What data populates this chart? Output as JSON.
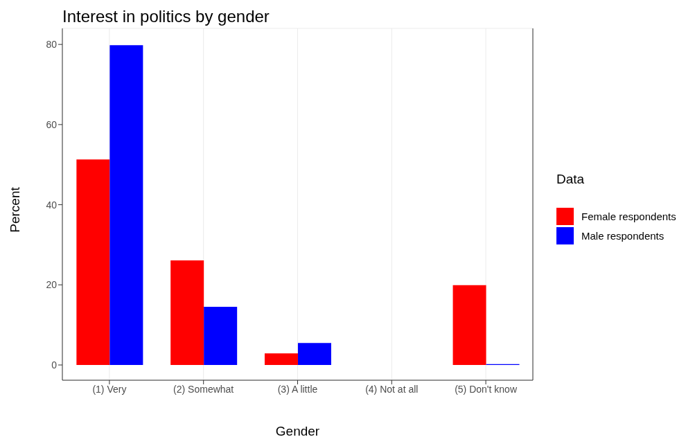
{
  "chart_data": {
    "type": "bar",
    "title": "Interest in politics by gender",
    "xlabel": "Gender",
    "ylabel": "Percent",
    "legend_title": "Data",
    "legend": "right",
    "grid": true,
    "categories": [
      "(1) Very",
      "(2) Somewhat",
      "(3) A little",
      "(4) Not at all",
      "(5) Don't know"
    ],
    "series": [
      {
        "name": "Female respondents",
        "color": "#ff0000",
        "values": [
          51.3,
          26.1,
          2.9,
          0,
          19.9
        ]
      },
      {
        "name": "Male respondents",
        "color": "#0000ff",
        "values": [
          79.8,
          14.5,
          5.5,
          0,
          0.2
        ]
      }
    ],
    "ylim": [
      -3.8,
      84
    ],
    "yticks": [
      0,
      20,
      40,
      60,
      80
    ]
  }
}
